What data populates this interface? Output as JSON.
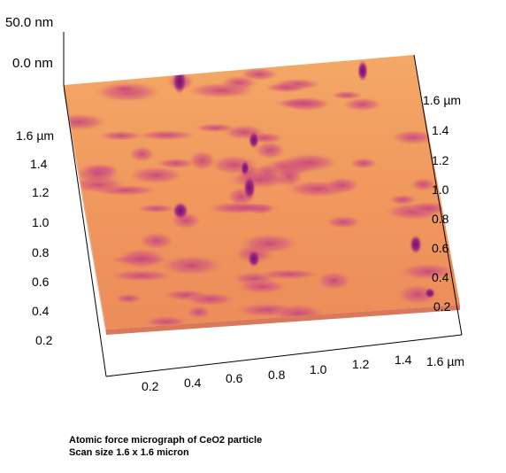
{
  "z_axis": {
    "top": "50.0 nm",
    "bottom": "0.0 nm"
  },
  "left_axis": {
    "ticks": [
      "1.6 µm",
      "1.4",
      "1.2",
      "1.0",
      "0.8",
      "0.6",
      "0.4",
      "0.2"
    ]
  },
  "right_axis": {
    "ticks": [
      "1.6 µm",
      "1.4",
      "1.2",
      "1.0",
      "0.8",
      "0.6",
      "0.4",
      "0.2"
    ]
  },
  "bottom_axis": {
    "ticks": [
      "0.2",
      "0.4",
      "0.6",
      "0.8",
      "1.0",
      "1.2",
      "1.4",
      "1.6 µm"
    ]
  },
  "caption": {
    "line1": "Atomic force micrograph of CeO2 particle",
    "line2": "Scan size 1.6 x 1.6 micron"
  },
  "colors": {
    "surface": "#f2a063",
    "low": "#e98a5a",
    "bump": "#c94a78",
    "peak": "#7a1a7a"
  }
}
